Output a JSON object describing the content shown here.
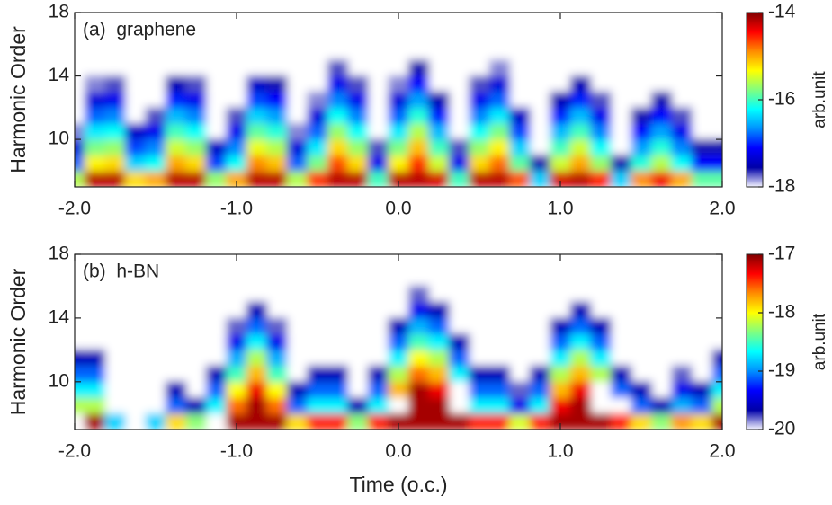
{
  "chart_data": [
    {
      "type": "heatmap",
      "annotation": "(a)  graphene",
      "ylabel": "Harmonic Order",
      "zlabel": "arb.unit",
      "x": [
        -2,
        -1.875,
        -1.75,
        -1.625,
        -1.5,
        -1.375,
        -1.25,
        -1.125,
        -1,
        -0.875,
        -0.75,
        -0.625,
        -0.5,
        -0.375,
        -0.25,
        -0.125,
        0,
        0.125,
        0.25,
        0.375,
        0.5,
        0.625,
        0.75,
        0.875,
        1,
        1.125,
        1.25,
        1.375,
        1.5,
        1.625,
        1.75,
        1.875,
        2
      ],
      "y": [
        7.5,
        8.5,
        9.5,
        10.5,
        11.5,
        12.5,
        13.5,
        14.5
      ],
      "z": [
        [
          -15.6,
          -14.2,
          -14.2,
          -15.2,
          -15.0,
          -14.2,
          -14.2,
          -15.7,
          -15.0,
          -14.2,
          -14.2,
          -15.6,
          -14.6,
          -14.2,
          -14.2,
          -16.0,
          -14.2,
          -14.2,
          -14.3,
          -16.0,
          -14.2,
          -14.2,
          -14.7,
          -16.4,
          -14.3,
          -14.2,
          -14.5,
          -16.4,
          -14.9,
          -14.4,
          -15.0,
          -15.9,
          -15.9
        ],
        [
          -16.8,
          -15.3,
          -15.2,
          -16.4,
          -16.2,
          -15.0,
          -15.2,
          -16.9,
          -16.2,
          -14.9,
          -15.1,
          -16.8,
          -15.8,
          -14.7,
          -15.2,
          -17.2,
          -15.3,
          -14.6,
          -15.5,
          -17.2,
          -15.2,
          -14.8,
          -15.9,
          -17.6,
          -15.5,
          -15.0,
          -15.7,
          -17.6,
          -16.1,
          -15.6,
          -16.2,
          -17.1,
          -17.1
        ],
        [
          -17.3,
          -15.8,
          -15.7,
          -16.9,
          -16.7,
          -15.5,
          -15.7,
          -17.4,
          -16.7,
          -15.4,
          -15.6,
          -17.3,
          -16.3,
          -15.2,
          -15.7,
          -17.7,
          -15.8,
          -15.1,
          -16.0,
          -17.7,
          -15.7,
          -15.3,
          -16.4,
          null,
          -16.0,
          -15.5,
          -16.2,
          null,
          -16.6,
          -16.1,
          -16.7,
          -17.6,
          -17.6
        ],
        [
          -17.8,
          -16.3,
          -16.2,
          -17.4,
          -17.2,
          -16.0,
          -16.2,
          null,
          -17.2,
          -15.9,
          -16.1,
          -17.8,
          -16.8,
          -15.7,
          -16.2,
          null,
          -16.3,
          -15.6,
          -16.5,
          null,
          -16.2,
          -15.8,
          -16.9,
          null,
          -16.5,
          -16.0,
          -16.7,
          null,
          -17.1,
          -16.6,
          -17.2,
          null,
          null
        ],
        [
          null,
          -16.8,
          -16.7,
          null,
          -17.7,
          -16.5,
          -16.7,
          null,
          -17.7,
          -16.4,
          -16.6,
          null,
          -17.3,
          -16.2,
          -16.7,
          null,
          -16.8,
          -16.1,
          -17.0,
          null,
          -16.7,
          -16.3,
          -17.4,
          null,
          -17.0,
          -16.5,
          -17.2,
          null,
          -17.6,
          -17.1,
          -17.7,
          null,
          null
        ],
        [
          null,
          -17.3,
          -17.2,
          null,
          null,
          -17.0,
          -17.2,
          null,
          null,
          -16.9,
          -17.1,
          null,
          -17.8,
          -16.7,
          -17.2,
          null,
          -17.3,
          -16.6,
          -17.5,
          null,
          -17.2,
          -16.8,
          null,
          null,
          -17.5,
          -17.0,
          -17.7,
          null,
          null,
          -17.6,
          null,
          null,
          null
        ],
        [
          null,
          -17.8,
          -17.7,
          null,
          null,
          -17.5,
          -17.7,
          null,
          null,
          -17.4,
          -17.6,
          null,
          null,
          -17.2,
          -17.7,
          null,
          -17.8,
          -17.1,
          null,
          null,
          -17.7,
          -17.3,
          null,
          null,
          null,
          -17.5,
          null,
          null,
          null,
          null,
          null,
          null,
          null
        ],
        [
          null,
          null,
          null,
          null,
          null,
          null,
          null,
          null,
          null,
          null,
          null,
          null,
          null,
          -17.7,
          null,
          null,
          null,
          -17.6,
          null,
          null,
          null,
          -17.8,
          null,
          null,
          null,
          null,
          null,
          null,
          null,
          null,
          null,
          null,
          null
        ]
      ],
      "xlim": [
        -2,
        2
      ],
      "xticks": [
        {
          "value": -2,
          "label": "-2.0"
        },
        {
          "value": -1,
          "label": "-1.0"
        },
        {
          "value": 0,
          "label": "0.0"
        },
        {
          "value": 1,
          "label": "1.0"
        },
        {
          "value": 2,
          "label": "2.0"
        }
      ],
      "ylim": [
        7,
        18
      ],
      "yticks": [
        10,
        14,
        18
      ],
      "zlim": [
        -18,
        -14
      ],
      "zticks": [
        -18,
        -16,
        -14
      ],
      "colorscale": [
        "#f4f4ff",
        "#0000a8",
        "#0000ff",
        "#0090ff",
        "#00ffff",
        "#80ff80",
        "#ffff00",
        "#ff8c00",
        "#ff0000",
        "#7f0000"
      ]
    },
    {
      "type": "heatmap",
      "annotation": "(b)  h-BN",
      "ylabel": "Harmonic Order",
      "zlabel": "arb.unit",
      "xlabel": "Time (o.c.)",
      "x": [
        -2,
        -1.875,
        -1.75,
        -1.625,
        -1.5,
        -1.375,
        -1.25,
        -1.125,
        -1,
        -0.875,
        -0.75,
        -0.625,
        -0.5,
        -0.375,
        -0.25,
        -0.125,
        0,
        0.125,
        0.25,
        0.375,
        0.5,
        0.625,
        0.75,
        0.875,
        1,
        1.125,
        1.25,
        1.375,
        1.5,
        1.625,
        1.75,
        1.875,
        2
      ],
      "y": [
        7.5,
        8.5,
        9.5,
        10.5,
        11.5,
        12.5,
        13.5,
        14.5,
        15.5
      ],
      "z": [
        [
          null,
          -17.1,
          -18.8,
          null,
          -18.8,
          -17.9,
          -18.3,
          null,
          -17.1,
          -17.1,
          -17.1,
          -17.9,
          -17.4,
          -17.4,
          -18.3,
          -17.4,
          -17.1,
          -17.1,
          -17.1,
          -17.1,
          -17.4,
          -17.4,
          -18.1,
          -17.4,
          -17.1,
          -17.1,
          -17.1,
          -17.4,
          -17.9,
          -18.3,
          -17.7,
          -17.9,
          -17.1
        ],
        [
          -18.2,
          -18.2,
          null,
          null,
          null,
          -19.1,
          -19.6,
          -18.7,
          -17.6,
          -17.1,
          -17.6,
          -19.1,
          -18.7,
          -18.7,
          -19.6,
          -18.7,
          null,
          -17.1,
          -17.1,
          null,
          -18.7,
          -18.7,
          -19.4,
          -18.7,
          -17.3,
          -17.1,
          null,
          null,
          -19.1,
          -19.6,
          -18.9,
          -19.1,
          -18.2
        ],
        [
          -18.7,
          -18.7,
          null,
          null,
          null,
          -19.6,
          null,
          -19.1,
          -18.0,
          -17.3,
          -18.0,
          -19.6,
          -19.1,
          -19.1,
          null,
          -19.1,
          -17.8,
          -17.1,
          -17.3,
          null,
          -19.1,
          -19.1,
          -19.8,
          -19.1,
          -17.8,
          -17.3,
          null,
          -19.1,
          -19.6,
          null,
          -19.4,
          -19.6,
          -18.7
        ],
        [
          -19.1,
          -19.1,
          null,
          null,
          null,
          null,
          null,
          -19.6,
          -18.5,
          -17.8,
          -18.5,
          null,
          -19.6,
          -19.6,
          null,
          -19.6,
          -18.2,
          -17.6,
          -17.8,
          -18.7,
          -19.6,
          -19.6,
          null,
          -19.6,
          -18.2,
          -17.8,
          -18.2,
          -19.6,
          null,
          null,
          -19.8,
          null,
          -19.1
        ],
        [
          -19.6,
          -19.6,
          null,
          null,
          null,
          null,
          null,
          null,
          -18.9,
          -18.2,
          -18.9,
          null,
          null,
          null,
          null,
          null,
          -18.7,
          -18.0,
          -18.2,
          -19.1,
          null,
          null,
          null,
          null,
          -18.7,
          -18.2,
          -18.7,
          null,
          null,
          null,
          null,
          null,
          -19.6
        ],
        [
          null,
          null,
          null,
          null,
          null,
          null,
          null,
          null,
          -19.4,
          -18.7,
          -19.4,
          null,
          null,
          null,
          null,
          null,
          -19.1,
          -18.5,
          -18.7,
          -19.6,
          null,
          null,
          null,
          null,
          -19.1,
          -18.7,
          -19.1,
          null,
          null,
          null,
          null,
          null,
          null
        ],
        [
          null,
          null,
          null,
          null,
          null,
          null,
          null,
          null,
          -19.8,
          -19.1,
          -19.8,
          null,
          null,
          null,
          null,
          null,
          -19.6,
          -18.9,
          -19.1,
          null,
          null,
          null,
          null,
          null,
          -19.6,
          -19.1,
          -19.6,
          null,
          null,
          null,
          null,
          null,
          null
        ],
        [
          null,
          null,
          null,
          null,
          null,
          null,
          null,
          null,
          null,
          -19.6,
          null,
          null,
          null,
          null,
          null,
          null,
          null,
          -19.4,
          -19.6,
          null,
          null,
          null,
          null,
          null,
          null,
          -19.6,
          null,
          null,
          null,
          null,
          null,
          null,
          null
        ],
        [
          null,
          null,
          null,
          null,
          null,
          null,
          null,
          null,
          null,
          null,
          null,
          null,
          null,
          null,
          null,
          null,
          null,
          -19.8,
          null,
          null,
          null,
          null,
          null,
          null,
          null,
          null,
          null,
          null,
          null,
          null,
          null,
          null,
          null
        ]
      ],
      "xlim": [
        -2,
        2
      ],
      "xticks": [
        {
          "value": -2,
          "label": "-2.0"
        },
        {
          "value": -1,
          "label": "-1.0"
        },
        {
          "value": 0,
          "label": "0.0"
        },
        {
          "value": 1,
          "label": "1.0"
        },
        {
          "value": 2,
          "label": "2.0"
        }
      ],
      "ylim": [
        7,
        18
      ],
      "yticks": [
        10,
        14,
        18
      ],
      "zlim": [
        -20,
        -17
      ],
      "zticks": [
        -20,
        -19,
        -18,
        -17
      ],
      "colorscale": [
        "#f4f4ff",
        "#0000a8",
        "#0000ff",
        "#0090ff",
        "#00ffff",
        "#80ff80",
        "#ffff00",
        "#ff8c00",
        "#ff0000",
        "#7f0000"
      ]
    }
  ]
}
